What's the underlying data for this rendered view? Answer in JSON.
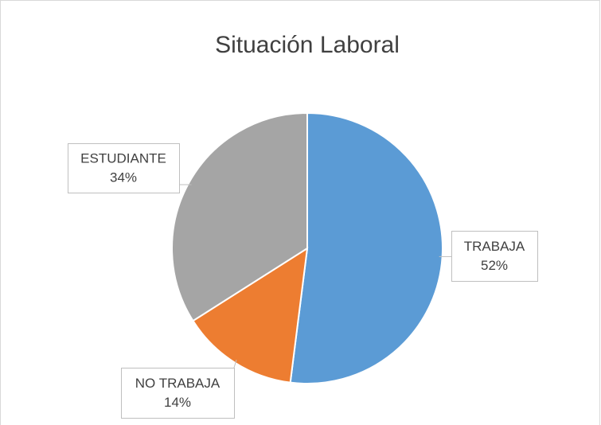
{
  "chart_data": {
    "type": "pie",
    "title": "Situación Laboral",
    "categories": [
      "TRABAJA",
      "NO TRABAJA",
      "ESTUDIANTE"
    ],
    "values": [
      52,
      14,
      34
    ],
    "value_labels": [
      "52%",
      "14%",
      "34%"
    ],
    "colors": [
      "#5b9bd5",
      "#ed7d31",
      "#a5a5a5"
    ]
  }
}
